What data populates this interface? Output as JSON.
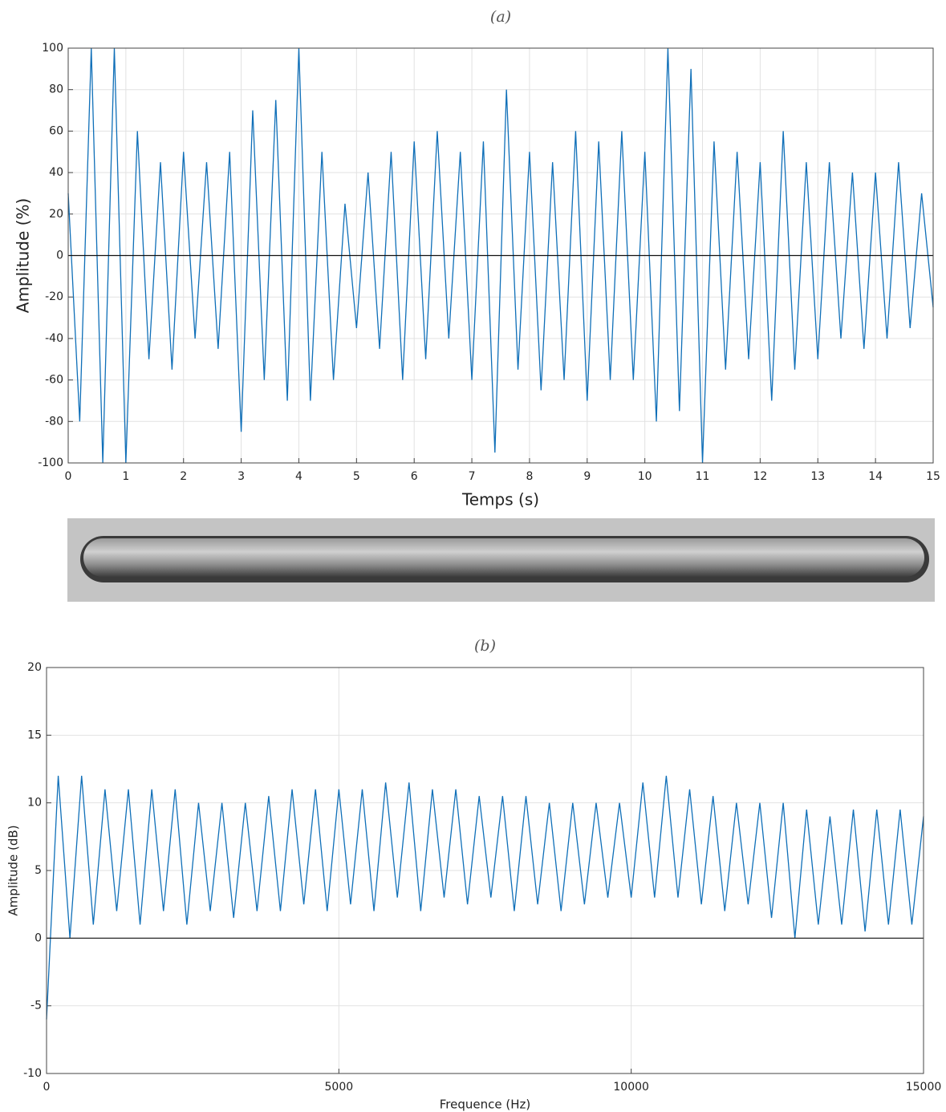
{
  "chart_data": [
    {
      "type": "line",
      "title": "(a)",
      "xlabel": "Temps (s)",
      "ylabel": "Amplitude (%)",
      "x": [
        0,
        0.2,
        0.4,
        0.6,
        0.8,
        1,
        1.2,
        1.4,
        1.6,
        1.8,
        2,
        2.2,
        2.4,
        2.6,
        2.8,
        3,
        3.2,
        3.4,
        3.6,
        3.8,
        4,
        4.2,
        4.4,
        4.6,
        4.8,
        5,
        5.2,
        5.4,
        5.6,
        5.8,
        6,
        6.2,
        6.4,
        6.6,
        6.8,
        7,
        7.2,
        7.4,
        7.6,
        7.8,
        8,
        8.2,
        8.4,
        8.6,
        8.8,
        9,
        9.2,
        9.4,
        9.6,
        9.8,
        10,
        10.2,
        10.4,
        10.6,
        10.8,
        11,
        11.2,
        11.4,
        11.6,
        11.8,
        12,
        12.2,
        12.4,
        12.6,
        12.8,
        13,
        13.2,
        13.4,
        13.6,
        13.8,
        14,
        14.2,
        14.4,
        14.6,
        14.8,
        15
      ],
      "series": [
        {
          "color": "#0f6fb8",
          "values": [
            30,
            -80,
            100,
            -100,
            100,
            -100,
            60,
            -50,
            45,
            -55,
            50,
            -40,
            45,
            -45,
            50,
            -85,
            70,
            -60,
            75,
            -70,
            100,
            -70,
            50,
            -60,
            25,
            -35,
            40,
            -45,
            50,
            -60,
            55,
            -50,
            60,
            -40,
            50,
            -60,
            55,
            -95,
            80,
            -55,
            50,
            -65,
            45,
            -60,
            60,
            -70,
            55,
            -60,
            60,
            -60,
            50,
            -80,
            100,
            -75,
            90,
            -100,
            55,
            -55,
            50,
            -50,
            45,
            -70,
            60,
            -55,
            45,
            -50,
            45,
            -40,
            40,
            -45,
            40,
            -40,
            45,
            -35,
            30,
            -25
          ]
        }
      ],
      "xlim": [
        0,
        15
      ],
      "ylim": [
        -100,
        100
      ],
      "xticks": [
        0,
        1,
        2,
        3,
        4,
        5,
        6,
        7,
        8,
        9,
        10,
        11,
        12,
        13,
        14,
        15
      ],
      "yticks": [
        -100,
        -80,
        -60,
        -40,
        -20,
        0,
        20,
        40,
        60,
        80,
        100
      ],
      "grid": true
    },
    {
      "type": "line",
      "title": "(b)",
      "xlabel": "Frequence (Hz)",
      "ylabel": "Amplitude (dB)",
      "x": [
        0,
        200,
        400,
        600,
        800,
        1000,
        1200,
        1400,
        1600,
        1800,
        2000,
        2200,
        2400,
        2600,
        2800,
        3000,
        3200,
        3400,
        3600,
        3800,
        4000,
        4200,
        4400,
        4600,
        4800,
        5000,
        5200,
        5400,
        5600,
        5800,
        6000,
        6200,
        6400,
        6600,
        6800,
        7000,
        7200,
        7400,
        7600,
        7800,
        8000,
        8200,
        8400,
        8600,
        8800,
        9000,
        9200,
        9400,
        9600,
        9800,
        10000,
        10200,
        10400,
        10600,
        10800,
        11000,
        11200,
        11400,
        11600,
        11800,
        12000,
        12200,
        12400,
        12600,
        12800,
        13000,
        13200,
        13400,
        13600,
        13800,
        14000,
        14200,
        14400,
        14600,
        14800,
        15000
      ],
      "series": [
        {
          "color": "#0f6fb8",
          "values": [
            -6,
            12,
            0,
            12,
            1,
            11,
            2,
            11,
            1,
            11,
            2,
            11,
            1,
            10,
            2,
            10,
            1.5,
            10,
            2,
            10.5,
            2,
            11,
            2.5,
            11,
            2,
            11,
            2.5,
            11,
            2,
            11.5,
            3,
            11.5,
            2,
            11,
            3,
            11,
            2.5,
            10.5,
            3,
            10.5,
            2,
            10.5,
            2.5,
            10,
            2,
            10,
            2.5,
            10,
            3,
            10,
            3,
            11.5,
            3,
            12,
            3,
            11,
            2.5,
            10.5,
            2,
            10,
            2.5,
            10,
            1.5,
            10,
            0,
            9.5,
            1,
            9,
            1,
            9.5,
            0.5,
            9.5,
            1,
            9.5,
            1,
            9
          ]
        }
      ],
      "xlim": [
        0,
        15000
      ],
      "ylim": [
        -10,
        20
      ],
      "xticks": [
        0,
        5000,
        10000,
        15000
      ],
      "yticks": [
        -10,
        -5,
        0,
        5,
        10,
        15,
        20
      ],
      "grid": true
    }
  ]
}
